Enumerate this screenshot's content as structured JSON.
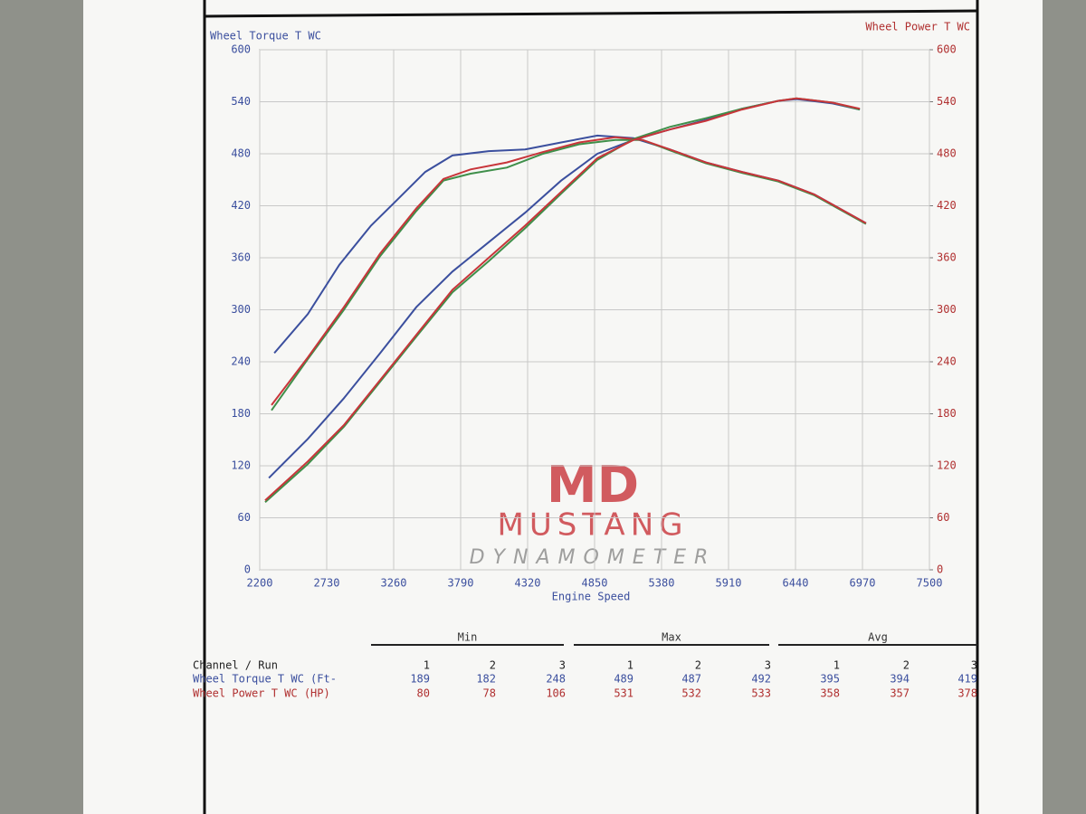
{
  "chart_data": {
    "type": "line",
    "ylabel": "Wheel Torque T WC",
    "y2label": "Wheel Power T WC",
    "xlabel": "Engine Speed",
    "xlim": [
      2200,
      7500
    ],
    "xticks": [
      2200,
      2730,
      3260,
      3790,
      4320,
      4850,
      5380,
      5910,
      6440,
      6970,
      7500
    ],
    "ylim": [
      0,
      600
    ],
    "yticks": [
      0,
      60,
      120,
      180,
      240,
      300,
      360,
      420,
      480,
      540,
      600
    ],
    "y2lim": [
      0,
      600
    ],
    "y2ticks": [
      0,
      60,
      120,
      180,
      240,
      300,
      360,
      420,
      480,
      540,
      600
    ],
    "grid": true,
    "series": [
      {
        "color": "#3b4f9e",
        "axis": "y",
        "x": [
          2315,
          2580,
          2830,
          3080,
          3296,
          3510,
          3725,
          4012,
          4300,
          4585,
          4872,
          5158,
          5445,
          5731,
          6017,
          6304,
          6590,
          6998
        ],
        "values": [
          250,
          295,
          352,
          397,
          428,
          459,
          478,
          483,
          485,
          493,
          501,
          498,
          485,
          470,
          459,
          449,
          433,
          400
        ]
      },
      {
        "color": "#3f8f4a",
        "axis": "y",
        "x": [
          2293,
          2580,
          2866,
          3153,
          3439,
          3654,
          3869,
          4155,
          4442,
          4728,
          5014,
          5229,
          5445,
          5731,
          6017,
          6304,
          6590,
          6998
        ],
        "values": [
          184,
          243,
          300,
          362,
          414,
          449,
          457,
          464,
          480,
          491,
          496,
          496,
          484,
          469,
          458,
          448,
          432,
          399
        ]
      },
      {
        "color": "#c8353a",
        "axis": "y",
        "x": [
          2293,
          2580,
          2866,
          3153,
          3439,
          3654,
          3869,
          4155,
          4442,
          4728,
          5014,
          5229,
          5445,
          5731,
          6017,
          6304,
          6590,
          6998
        ],
        "values": [
          190,
          245,
          303,
          365,
          417,
          451,
          462,
          470,
          482,
          493,
          499,
          496,
          485,
          470,
          459,
          449,
          433,
          400
        ]
      },
      {
        "color": "#3b4f9e",
        "axis": "y2",
        "x": [
          2272,
          2580,
          2866,
          3153,
          3439,
          3725,
          4012,
          4300,
          4585,
          4872,
          5158,
          5445,
          5731,
          6017,
          6304,
          6447,
          6734,
          6949
        ],
        "values": [
          106,
          151,
          198,
          250,
          303,
          344,
          378,
          412,
          449,
          480,
          496,
          508,
          519,
          532,
          541,
          543,
          538,
          531
        ]
      },
      {
        "color": "#3f8f4a",
        "axis": "y2",
        "x": [
          2243,
          2580,
          2866,
          3153,
          3439,
          3725,
          4012,
          4300,
          4585,
          4872,
          5158,
          5445,
          5731,
          6017,
          6304,
          6447,
          6734,
          6949
        ],
        "values": [
          78,
          122,
          165,
          217,
          269,
          320,
          356,
          394,
          434,
          473,
          497,
          511,
          521,
          532,
          541,
          544,
          539,
          531
        ]
      },
      {
        "color": "#c8353a",
        "axis": "y2",
        "x": [
          2243,
          2580,
          2866,
          3153,
          3439,
          3725,
          4012,
          4300,
          4585,
          4872,
          5158,
          5445,
          5731,
          6017,
          6304,
          6447,
          6734,
          6949
        ],
        "values": [
          80,
          125,
          167,
          219,
          271,
          323,
          360,
          397,
          436,
          475,
          496,
          508,
          518,
          531,
          541,
          544,
          539,
          532
        ]
      }
    ]
  },
  "logo": {
    "mark": "MD",
    "name": "MUSTANG",
    "sub": "DYNAMOMETER"
  },
  "table": {
    "groups": [
      "Min",
      "Max",
      "Avg"
    ],
    "channel_label": "Channel / Run",
    "runs": [
      "1",
      "2",
      "3"
    ],
    "rows": [
      {
        "label": "Wheel Torque T WC (Ft-",
        "values": [
          189,
          182,
          248,
          489,
          487,
          492,
          395,
          394,
          419
        ]
      },
      {
        "label": "Wheel Power T WC (HP)",
        "values": [
          80,
          78,
          106,
          531,
          532,
          533,
          358,
          357,
          378
        ]
      }
    ]
  }
}
